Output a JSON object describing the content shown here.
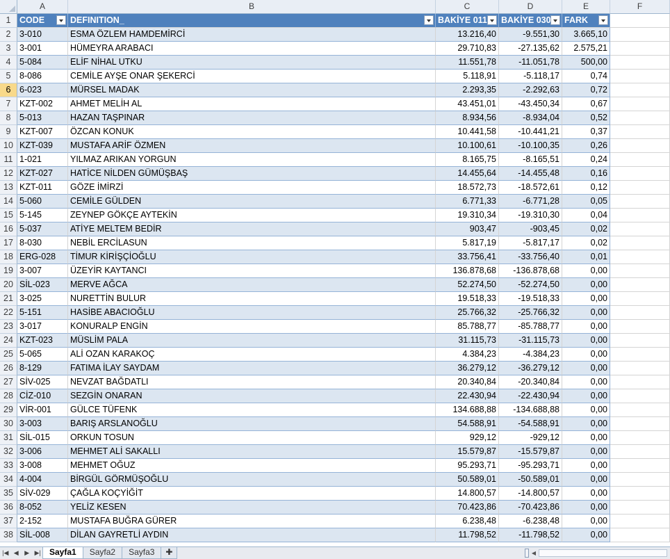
{
  "columns": [
    "A",
    "B",
    "C",
    "D",
    "E",
    "F"
  ],
  "header": {
    "row_num": "1",
    "code": "CODE",
    "definition": "DEFINITION_",
    "bakiye011": "BAKİYE 011",
    "bakiye030": "BAKİYE 030",
    "fark": "FARK"
  },
  "rows": [
    {
      "n": "2",
      "code": "3-010",
      "name": "ESMA ÖZLEM HAMDEMİRCİ",
      "b011": "13.216,40",
      "b030": "-9.551,30",
      "fark": "3.665,10"
    },
    {
      "n": "3",
      "code": "3-001",
      "name": "HÜMEYRA ARABACI",
      "b011": "29.710,83",
      "b030": "-27.135,62",
      "fark": "2.575,21"
    },
    {
      "n": "4",
      "code": "5-084",
      "name": "ELİF NİHAL UTKU",
      "b011": "11.551,78",
      "b030": "-11.051,78",
      "fark": "500,00"
    },
    {
      "n": "5",
      "code": "8-086",
      "name": "CEMİLE AYŞE ONAR ŞEKERCİ",
      "b011": "5.118,91",
      "b030": "-5.118,17",
      "fark": "0,74"
    },
    {
      "n": "6",
      "code": "6-023",
      "name": "MÜRSEL MADAK",
      "b011": "2.293,35",
      "b030": "-2.292,63",
      "fark": "0,72"
    },
    {
      "n": "7",
      "code": "KZT-002",
      "name": "AHMET MELİH AL",
      "b011": "43.451,01",
      "b030": "-43.450,34",
      "fark": "0,67"
    },
    {
      "n": "8",
      "code": "5-013",
      "name": "HAZAN TAŞPINAR",
      "b011": "8.934,56",
      "b030": "-8.934,04",
      "fark": "0,52"
    },
    {
      "n": "9",
      "code": "KZT-007",
      "name": "ÖZCAN KONUK",
      "b011": "10.441,58",
      "b030": "-10.441,21",
      "fark": "0,37"
    },
    {
      "n": "10",
      "code": "KZT-039",
      "name": "MUSTAFA ARİF ÖZMEN",
      "b011": "10.100,61",
      "b030": "-10.100,35",
      "fark": "0,26"
    },
    {
      "n": "11",
      "code": "1-021",
      "name": "YILMAZ ARIKAN YORGUN",
      "b011": "8.165,75",
      "b030": "-8.165,51",
      "fark": "0,24"
    },
    {
      "n": "12",
      "code": "KZT-027",
      "name": "HATİCE NİLDEN GÜMÜŞBAŞ",
      "b011": "14.455,64",
      "b030": "-14.455,48",
      "fark": "0,16"
    },
    {
      "n": "13",
      "code": "KZT-011",
      "name": "GÖZE İMİRZİ",
      "b011": "18.572,73",
      "b030": "-18.572,61",
      "fark": "0,12"
    },
    {
      "n": "14",
      "code": "5-060",
      "name": "CEMİLE GÜLDEN",
      "b011": "6.771,33",
      "b030": "-6.771,28",
      "fark": "0,05"
    },
    {
      "n": "15",
      "code": "5-145",
      "name": "ZEYNEP GÖKÇE AYTEKİN",
      "b011": "19.310,34",
      "b030": "-19.310,30",
      "fark": "0,04"
    },
    {
      "n": "16",
      "code": "5-037",
      "name": "ATİYE MELTEM BEDİR",
      "b011": "903,47",
      "b030": "-903,45",
      "fark": "0,02"
    },
    {
      "n": "17",
      "code": "8-030",
      "name": "NEBİL ERCİLASUN",
      "b011": "5.817,19",
      "b030": "-5.817,17",
      "fark": "0,02"
    },
    {
      "n": "18",
      "code": "ERG-028",
      "name": "TİMUR KİRİŞÇİOĞLU",
      "b011": "33.756,41",
      "b030": "-33.756,40",
      "fark": "0,01"
    },
    {
      "n": "19",
      "code": "3-007",
      "name": "ÜZEYİR KAYTANCI",
      "b011": "136.878,68",
      "b030": "-136.878,68",
      "fark": "0,00"
    },
    {
      "n": "20",
      "code": "SİL-023",
      "name": "MERVE AĞCA",
      "b011": "52.274,50",
      "b030": "-52.274,50",
      "fark": "0,00"
    },
    {
      "n": "21",
      "code": "3-025",
      "name": "NURETTİN BULUR",
      "b011": "19.518,33",
      "b030": "-19.518,33",
      "fark": "0,00"
    },
    {
      "n": "22",
      "code": "5-151",
      "name": "HASİBE ABACIOĞLU",
      "b011": "25.766,32",
      "b030": "-25.766,32",
      "fark": "0,00"
    },
    {
      "n": "23",
      "code": "3-017",
      "name": "KONURALP ENGİN",
      "b011": "85.788,77",
      "b030": "-85.788,77",
      "fark": "0,00"
    },
    {
      "n": "24",
      "code": "KZT-023",
      "name": "MÜSLİM PALA",
      "b011": "31.115,73",
      "b030": "-31.115,73",
      "fark": "0,00"
    },
    {
      "n": "25",
      "code": "5-065",
      "name": "ALİ OZAN KARAKOÇ",
      "b011": "4.384,23",
      "b030": "-4.384,23",
      "fark": "0,00"
    },
    {
      "n": "26",
      "code": "8-129",
      "name": "FATIMA İLAY SAYDAM",
      "b011": "36.279,12",
      "b030": "-36.279,12",
      "fark": "0,00"
    },
    {
      "n": "27",
      "code": "SİV-025",
      "name": "NEVZAT BAĞDATLI",
      "b011": "20.340,84",
      "b030": "-20.340,84",
      "fark": "0,00"
    },
    {
      "n": "28",
      "code": "CİZ-010",
      "name": "SEZGİN ONARAN",
      "b011": "22.430,94",
      "b030": "-22.430,94",
      "fark": "0,00"
    },
    {
      "n": "29",
      "code": "VİR-001",
      "name": "GÜLCE TÜFENK",
      "b011": "134.688,88",
      "b030": "-134.688,88",
      "fark": "0,00"
    },
    {
      "n": "30",
      "code": "3-003",
      "name": "BARIŞ ARSLANOĞLU",
      "b011": "54.588,91",
      "b030": "-54.588,91",
      "fark": "0,00"
    },
    {
      "n": "31",
      "code": "SİL-015",
      "name": "ORKUN TOSUN",
      "b011": "929,12",
      "b030": "-929,12",
      "fark": "0,00"
    },
    {
      "n": "32",
      "code": "3-006",
      "name": "MEHMET ALİ SAKALLI",
      "b011": "15.579,87",
      "b030": "-15.579,87",
      "fark": "0,00"
    },
    {
      "n": "33",
      "code": "3-008",
      "name": "MEHMET OĞUZ",
      "b011": "95.293,71",
      "b030": "-95.293,71",
      "fark": "0,00"
    },
    {
      "n": "34",
      "code": "4-004",
      "name": "BİRGÜL GÖRMÜŞOĞLU",
      "b011": "50.589,01",
      "b030": "-50.589,01",
      "fark": "0,00"
    },
    {
      "n": "35",
      "code": "SİV-029",
      "name": "ÇAĞLA KOÇYİĞİT",
      "b011": "14.800,57",
      "b030": "-14.800,57",
      "fark": "0,00"
    },
    {
      "n": "36",
      "code": "8-052",
      "name": "YELİZ KESEN",
      "b011": "70.423,86",
      "b030": "-70.423,86",
      "fark": "0,00"
    },
    {
      "n": "37",
      "code": "2-152",
      "name": "MUSTAFA BUĞRA GÜRER",
      "b011": "6.238,48",
      "b030": "-6.238,48",
      "fark": "0,00"
    },
    {
      "n": "38",
      "code": "SİL-008",
      "name": "DİLAN GAYRETLİ AYDIN",
      "b011": "11.798,52",
      "b030": "-11.798,52",
      "fark": "0,00"
    }
  ],
  "selected_row": "6",
  "sheet_tabs": [
    "Sayfa1",
    "Sayfa2",
    "Sayfa3"
  ],
  "active_tab": "Sayfa1",
  "icons": {
    "nav": [
      "first-sheet-icon",
      "prev-sheet-icon",
      "next-sheet-icon",
      "last-sheet-icon"
    ],
    "new_sheet": "insert-sheet-icon",
    "filter": "filter-dropdown-icon"
  },
  "colors": {
    "header_fill": "#4f81bd",
    "band_fill": "#dce6f1",
    "selected_row_header": "#f8d98a"
  }
}
